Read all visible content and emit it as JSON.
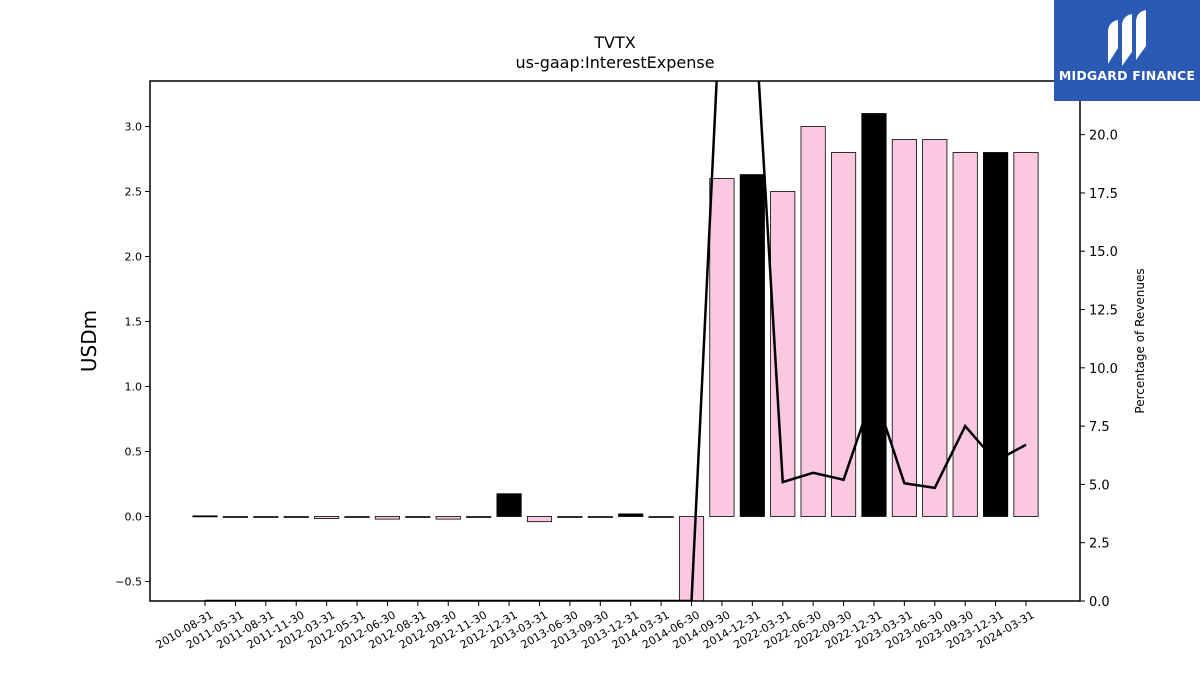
{
  "colors": {
    "pink": "#fac8e1",
    "black": "#000000",
    "logo_bg": "#2b5ab5"
  },
  "brand": {
    "name": "MIDGARD FINANCE",
    "icon": "midgard-logo-icon"
  },
  "chart_data": {
    "type": "bar",
    "title": "TVTX",
    "subtitle": "us-gaap:InterestExpense",
    "ylabel": "USDm",
    "ylabel_right": "Percentage of Revenues",
    "ylim": [
      -0.65,
      3.35
    ],
    "ylim_right": [
      0,
      22.3
    ],
    "yticks": [
      "−0.5",
      "0.0",
      "0.5",
      "1.0",
      "1.5",
      "2.0",
      "2.5",
      "3.0"
    ],
    "yticks_right": [
      "0.0",
      "2.5",
      "5.0",
      "7.5",
      "10.0",
      "12.5",
      "15.0",
      "17.5",
      "20.0"
    ],
    "categories": [
      "2010-08-31",
      "2011-05-31",
      "2011-08-31",
      "2011-11-30",
      "2012-03-31",
      "2012-05-31",
      "2012-06-30",
      "2012-08-31",
      "2012-09-30",
      "2012-11-30",
      "2012-12-31",
      "2013-03-31",
      "2013-06-30",
      "2013-09-30",
      "2013-12-31",
      "2014-03-31",
      "2014-06-30",
      "2014-09-30",
      "2014-12-31",
      "2022-03-31",
      "2022-06-30",
      "2022-09-30",
      "2022-12-31",
      "2023-03-31",
      "2023-06-30",
      "2023-09-30",
      "2023-12-31",
      "2024-03-31"
    ],
    "series": [
      {
        "values": [
          0.005,
          -0.003,
          -0.003,
          -0.003,
          -0.015,
          -0.003,
          -0.02,
          -0.003,
          -0.02,
          -0.003,
          0.175,
          -0.04,
          -0.003,
          -0.003,
          0.02,
          -0.003,
          -0.7,
          2.6,
          2.63,
          2.5,
          3.0,
          2.8,
          3.1,
          2.9,
          2.9,
          2.8,
          2.8,
          2.8
        ],
        "bar_colors": [
          "black",
          "pink",
          "pink",
          "pink",
          "pink",
          "pink",
          "pink",
          "pink",
          "pink",
          "pink",
          "black",
          "pink",
          "pink",
          "pink",
          "black",
          "pink",
          "pink",
          "pink",
          "black",
          "pink",
          "pink",
          "pink",
          "black",
          "pink",
          "pink",
          "pink",
          "black",
          "pink"
        ]
      },
      {
        "axis": "right",
        "type": "line",
        "values": [
          0,
          0,
          0,
          0,
          0,
          0,
          0,
          0,
          0,
          0,
          0,
          0,
          0,
          0,
          0,
          0,
          0,
          27,
          27,
          5.1,
          5.5,
          5.2,
          9.0,
          5.05,
          4.85,
          7.5,
          6.0,
          6.7
        ]
      }
    ]
  }
}
